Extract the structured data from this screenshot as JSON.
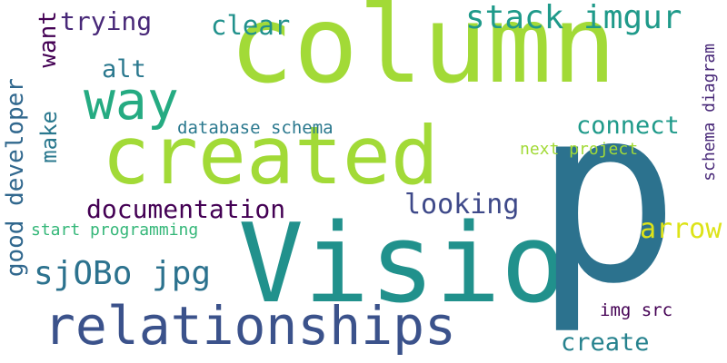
{
  "words": [
    {
      "id": "column",
      "text": "column",
      "color": "#a2da37"
    },
    {
      "id": "created",
      "text": "created",
      "color": "#a2da37"
    },
    {
      "id": "visio",
      "text": "Visio",
      "color": "#21918c"
    },
    {
      "id": "p",
      "text": "p",
      "color": "#2c728e"
    },
    {
      "id": "relationships",
      "text": "relationships",
      "color": "#3b528b"
    },
    {
      "id": "way",
      "text": "way",
      "color": "#25ab82"
    },
    {
      "id": "stack",
      "text": "stack imgur",
      "color": "#1f9a8a"
    },
    {
      "id": "trying",
      "text": "trying",
      "color": "#482878"
    },
    {
      "id": "clear",
      "text": "clear",
      "color": "#21918c"
    },
    {
      "id": "alt",
      "text": "alt",
      "color": "#2a788e"
    },
    {
      "id": "database",
      "text": "database schema",
      "color": "#2a788e"
    },
    {
      "id": "connect",
      "text": "connect",
      "color": "#1f9a8a"
    },
    {
      "id": "nextproject",
      "text": "next project",
      "color": "#a2da37"
    },
    {
      "id": "documentation",
      "text": "documentation",
      "color": "#440154"
    },
    {
      "id": "looking",
      "text": "looking",
      "color": "#3e4989"
    },
    {
      "id": "arrow",
      "text": "arrow",
      "color": "#dde318"
    },
    {
      "id": "startprog",
      "text": "start programming",
      "color": "#35b779"
    },
    {
      "id": "sjobo",
      "text": "sjOBo jpg",
      "color": "#2c728e"
    },
    {
      "id": "imgsrc",
      "text": "img src",
      "color": "#440154"
    },
    {
      "id": "create",
      "text": "create",
      "color": "#26828e"
    },
    {
      "id": "want",
      "text": "want",
      "color": "#440154"
    },
    {
      "id": "make",
      "text": "make",
      "color": "#2a788e"
    },
    {
      "id": "gooddev",
      "text": "good developer",
      "color": "#31688e"
    },
    {
      "id": "schemadiagram",
      "text": "schema diagram",
      "color": "#482878"
    }
  ]
}
